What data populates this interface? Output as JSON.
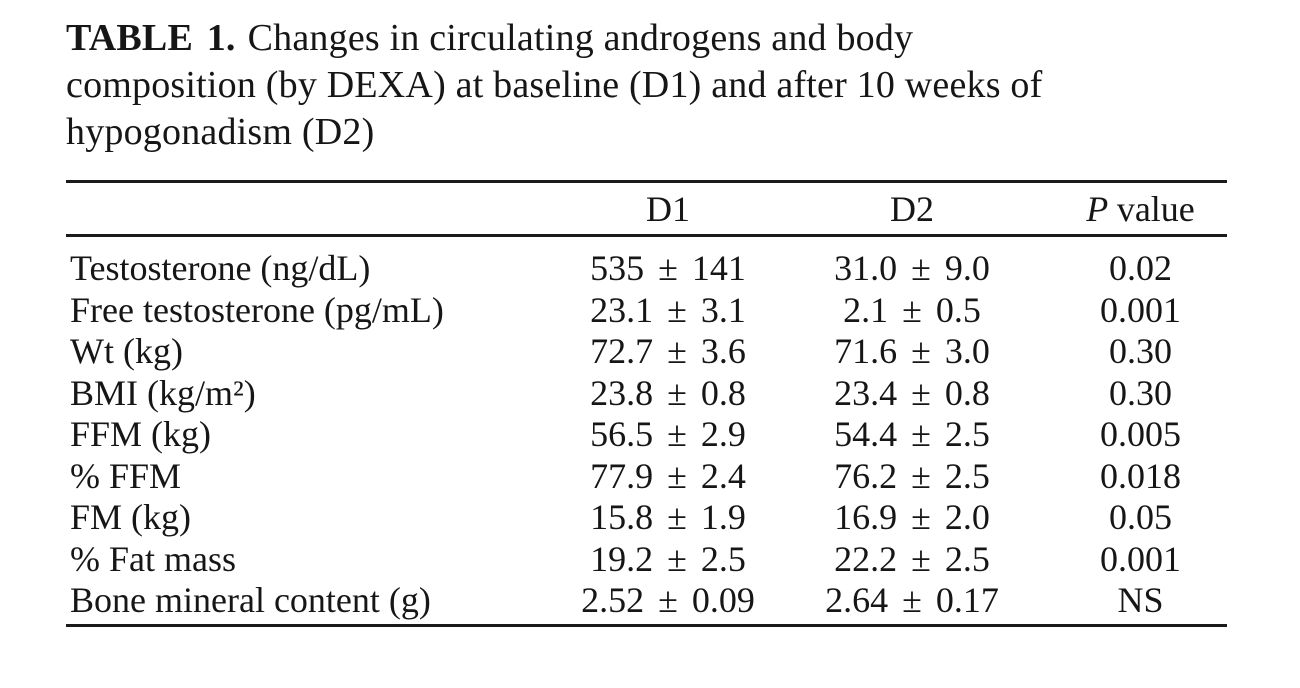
{
  "title": {
    "label": "TABLE 1.",
    "lines": [
      "Changes in circulating androgens and body",
      "composition (by DEXA) at baseline (D1) and after 10 weeks of",
      "hypogonadism (D2)"
    ]
  },
  "table": {
    "header": {
      "d1": "D1",
      "d2": "D2",
      "p_italic": "P",
      "p_rest": "value"
    },
    "rows": [
      {
        "label": "Testosterone (ng/dL)",
        "d1": "535 ± 141",
        "d2": "31.0 ± 9.0",
        "p": "0.02"
      },
      {
        "label": "Free testosterone (pg/mL)",
        "d1": "23.1 ± 3.1",
        "d2": "2.1 ± 0.5",
        "p": "0.001"
      },
      {
        "label": "Wt (kg)",
        "d1": "72.7 ± 3.6",
        "d2": "71.6 ± 3.0",
        "p": "0.30"
      },
      {
        "label": "BMI (kg/m²)",
        "d1": "23.8 ± 0.8",
        "d2": "23.4 ± 0.8",
        "p": "0.30"
      },
      {
        "label": "FFM (kg)",
        "d1": "56.5 ± 2.9",
        "d2": "54.4 ± 2.5",
        "p": "0.005"
      },
      {
        "label": "% FFM",
        "d1": "77.9 ± 2.4",
        "d2": "76.2 ± 2.5",
        "p": "0.018"
      },
      {
        "label": "FM (kg)",
        "d1": "15.8 ± 1.9",
        "d2": "16.9 ± 2.0",
        "p": "0.05"
      },
      {
        "label": "% Fat mass",
        "d1": "19.2 ± 2.5",
        "d2": "22.2 ± 2.5",
        "p": "0.001"
      },
      {
        "label": "Bone mineral content (g)",
        "d1": "2.52 ± 0.09",
        "d2": "2.64 ± 0.17",
        "p": "NS"
      }
    ]
  }
}
